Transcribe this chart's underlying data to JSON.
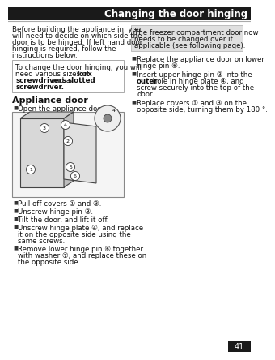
{
  "title": "Changing the door hinging",
  "title_bg": "#1a1a1a",
  "title_text_color": "#ffffff",
  "page_bg": "#ffffff",
  "page_number": "41",
  "left_intro": [
    "Before building the appliance in, you",
    "will need to decide on which side the",
    "door is to be hinged. If left hand door",
    "hinging is required, follow the",
    "instructions below."
  ],
  "note_lines": [
    {
      "text": "To change the door hinging, you will",
      "bold_parts": []
    },
    {
      "text": "need various sizes of ",
      "bold_parts": [],
      "append_bold": "Torx"
    },
    {
      "text": "screwdrivers",
      "bold_parts": [
        "screwdrivers"
      ],
      "append": " and a "
    },
    {
      "text": "slotted",
      "bold_parts": [
        "slotted"
      ],
      "append": ""
    },
    {
      "text": "screwdriver.",
      "bold_parts": [
        "screwdriver."
      ],
      "append": ""
    }
  ],
  "appliance_door_heading": "Appliance door",
  "bullet_left": [
    [
      "Open the appliance door."
    ],
    [
      "Pull off covers ① and ③."
    ],
    [
      "Unscrew hinge pin ③."
    ],
    [
      "Tilt the door, and lift it off."
    ],
    [
      "Unscrew hinge plate ④, and replace",
      "it on the opposite side using the",
      "same screws."
    ],
    [
      "Remove lower hinge pin ⑥ together",
      "with washer ⑦, and replace these on",
      "the opposite side."
    ]
  ],
  "right_box_lines": [
    "The freezer compartment door now",
    "needs to be changed over if",
    "applicable (see following page)."
  ],
  "bullet_right": [
    [
      [
        "Replace the appliance door on lower"
      ],
      [
        "hinge pin ⑥."
      ]
    ],
    [
      [
        "Insert upper hinge pin ③ into the"
      ],
      [
        {
          "bold": true,
          "text": "outer"
        },
        " hole in hinge plate ④, and"
      ],
      [
        "screw securely into the top of the"
      ],
      [
        "door."
      ]
    ],
    [
      [
        "Replace covers ① and ③ on the"
      ],
      [
        "opposite side, turning them by 180 °."
      ]
    ]
  ],
  "divider_color": "#cccccc",
  "note_box_border": "#aaaaaa",
  "right_box_bg": "#e0e0e0",
  "fs_title": 8.5,
  "fs_body": 6.2,
  "fs_heading": 8.0,
  "fs_note": 6.2
}
